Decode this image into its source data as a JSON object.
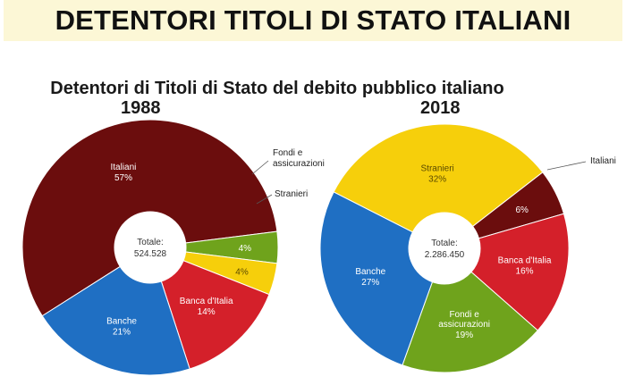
{
  "header": {
    "title": "DETENTORI TITOLI DI STATO ITALIANI"
  },
  "subtitle": "Detentori di Titoli di Stato del debito pubblico italiano",
  "chart_data": [
    {
      "type": "pie",
      "title": "1988",
      "center_label": "Totale:",
      "center_value": "524.528",
      "series": [
        {
          "name": "Italiani",
          "value": 57,
          "pct_label": "57%",
          "color": "#6b0d0d"
        },
        {
          "name": "Fondi e assicurazioni",
          "value": 4,
          "pct_label": "4%",
          "color": "#6fa31c"
        },
        {
          "name": "Stranieri",
          "value": 4,
          "pct_label": "4%",
          "color": "#f6cf0b"
        },
        {
          "name": "Banca d'Italia",
          "value": 14,
          "pct_label": "14%",
          "color": "#d4202a"
        },
        {
          "name": "Banche",
          "value": 21,
          "pct_label": "21%",
          "color": "#1f6fc3"
        }
      ]
    },
    {
      "type": "pie",
      "title": "2018",
      "center_label": "Totale:",
      "center_value": "2.286.450",
      "series": [
        {
          "name": "Stranieri",
          "value": 32,
          "pct_label": "32%",
          "color": "#f6cf0b"
        },
        {
          "name": "Italiani",
          "value": 6,
          "pct_label": "6%",
          "color": "#6b0d0d"
        },
        {
          "name": "Banca d'Italia",
          "value": 16,
          "pct_label": "16%",
          "color": "#d4202a"
        },
        {
          "name": "Fondi e assicurazioni",
          "value": 19,
          "pct_label": "19%",
          "color": "#6fa31c"
        },
        {
          "name": "Banche",
          "value": 27,
          "pct_label": "27%",
          "color": "#1f6fc3"
        }
      ]
    }
  ]
}
